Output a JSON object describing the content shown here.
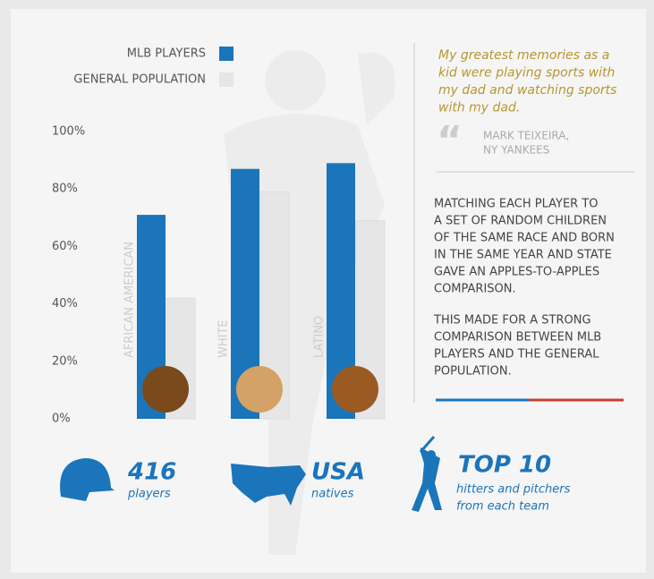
{
  "chart_data": {
    "type": "bar",
    "categories": [
      "AFRICAN AMERICAN",
      "WHITE",
      "LATINO"
    ],
    "series": [
      {
        "name": "MLB PLAYERS",
        "color": "#1a75bb",
        "values": [
          71,
          87,
          89
        ]
      },
      {
        "name": "GENERAL POPULATION",
        "color": "#e6e6e6",
        "values": [
          42,
          79,
          69
        ]
      }
    ],
    "ylim": [
      0,
      100
    ],
    "yticks": [
      {
        "value": 0,
        "label": "0%"
      },
      {
        "value": 20,
        "label": "20%"
      },
      {
        "value": 40,
        "label": "40%"
      },
      {
        "value": 60,
        "label": "60%"
      },
      {
        "value": 80,
        "label": "80%"
      },
      {
        "value": 100,
        "label": "100%"
      }
    ],
    "grid": false
  },
  "quote": {
    "lines": [
      "My greatest memories as a",
      "kid were playing sports with",
      "my dad and watching sports",
      "with my dad."
    ],
    "author": [
      "MARK TEIXEIRA,",
      "NY YANKEES"
    ]
  },
  "body": [
    [
      "MATCHING EACH PLAYER TO",
      "A SET OF RANDOM CHILDREN",
      "OF THE SAME RACE AND BORN",
      "IN THE SAME YEAR AND STATE",
      "GAVE AN APPLES-TO-APPLES",
      "COMPARISON."
    ],
    [
      "THIS MADE FOR A STRONG",
      "COMPARISON BETWEEN MLB",
      "PLAYERS AND THE GENERAL",
      "POPULATION."
    ]
  ],
  "stats": [
    {
      "value": "416",
      "text": [
        "players"
      ]
    },
    {
      "value": "USA",
      "text": [
        "natives"
      ]
    },
    {
      "value": "TOP 10",
      "text": [
        "hitters and pitchers",
        "from each team"
      ]
    }
  ]
}
